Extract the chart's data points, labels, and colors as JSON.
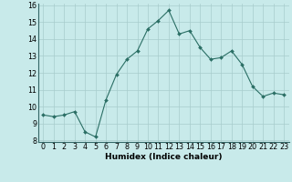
{
  "x": [
    0,
    1,
    2,
    3,
    4,
    5,
    6,
    7,
    8,
    9,
    10,
    11,
    12,
    13,
    14,
    15,
    16,
    17,
    18,
    19,
    20,
    21,
    22,
    23
  ],
  "y": [
    9.5,
    9.4,
    9.5,
    9.7,
    8.5,
    8.2,
    10.4,
    11.9,
    12.8,
    13.3,
    14.6,
    15.1,
    15.7,
    14.3,
    14.5,
    13.5,
    12.8,
    12.9,
    13.3,
    12.5,
    11.2,
    10.6,
    10.8,
    10.7
  ],
  "line_color": "#2a6e64",
  "marker": "D",
  "marker_size": 2.0,
  "bg_color": "#c8eaea",
  "grid_color": "#a8cccc",
  "xlabel": "Humidex (Indice chaleur)",
  "xlim": [
    -0.5,
    23.5
  ],
  "ylim": [
    7.9,
    16.1
  ],
  "yticks": [
    8,
    9,
    10,
    11,
    12,
    13,
    14,
    15,
    16
  ],
  "xlabel_fontsize": 6.5,
  "tick_fontsize": 5.8
}
